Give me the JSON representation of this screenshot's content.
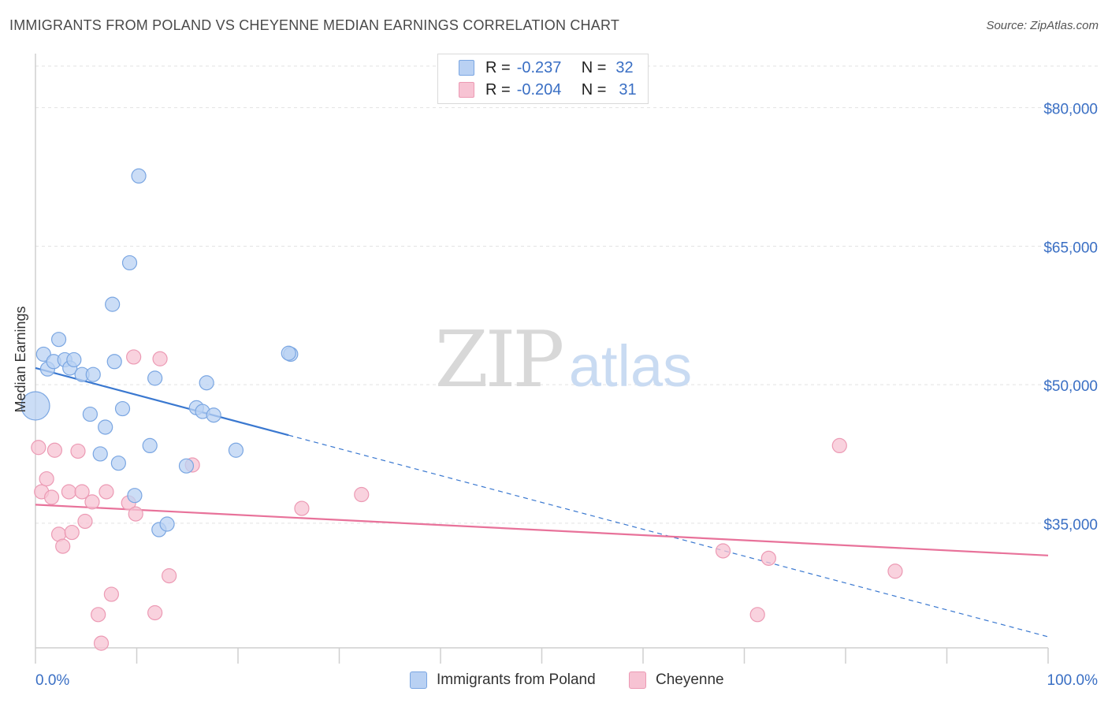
{
  "header": {
    "title": "IMMIGRANTS FROM POLAND VS CHEYENNE MEDIAN EARNINGS CORRELATION CHART",
    "source": "Source: ZipAtlas.com"
  },
  "watermark": {
    "zip": "ZIP",
    "atlas": "atlas"
  },
  "legend": {
    "rows": [
      {
        "r_label": "R =",
        "r_value": "-0.237",
        "n_label": "N =",
        "n_value": "32"
      },
      {
        "r_label": "R =",
        "r_value": "-0.204",
        "n_label": "N =",
        "n_value": "31"
      }
    ]
  },
  "chart_data": {
    "type": "scatter",
    "title": "IMMIGRANTS FROM POLAND VS CHEYENNE MEDIAN EARNINGS CORRELATION CHART",
    "xlabel": "",
    "ylabel": "Median Earnings",
    "xlim": [
      0,
      100
    ],
    "ylim": [
      21500,
      85000
    ],
    "x_tick_labels": [
      "0.0%",
      "100.0%"
    ],
    "y_ticks": [
      35000,
      50000,
      65000,
      80000
    ],
    "y_tick_labels": [
      "$35,000",
      "$50,000",
      "$65,000",
      "$80,000"
    ],
    "grid": true,
    "legend_position": "top-center",
    "colors": {
      "poland_fill": "#b9d1f3",
      "poland_stroke": "#7aa6e2",
      "poland_line": "#3a78d0",
      "cheyenne_fill": "#f7c3d3",
      "cheyenne_stroke": "#ec9ab4",
      "cheyenne_line": "#e8729a",
      "axis_label": "#3a6fc4"
    },
    "series": [
      {
        "name": "Immigrants from Poland",
        "r": -0.237,
        "n": 32,
        "trend": {
          "x0": 0,
          "y0": 51800,
          "x_solid_end": 25,
          "x1": 100,
          "y1": 22700
        },
        "points": [
          {
            "x": 0.0,
            "y": 47700,
            "big": true
          },
          {
            "x": 0.8,
            "y": 53300
          },
          {
            "x": 1.2,
            "y": 51700
          },
          {
            "x": 1.8,
            "y": 52500
          },
          {
            "x": 2.3,
            "y": 54900
          },
          {
            "x": 2.9,
            "y": 52700
          },
          {
            "x": 3.4,
            "y": 51800
          },
          {
            "x": 3.8,
            "y": 52700
          },
          {
            "x": 4.6,
            "y": 51100
          },
          {
            "x": 5.7,
            "y": 51100
          },
          {
            "x": 5.4,
            "y": 46800
          },
          {
            "x": 6.4,
            "y": 42500
          },
          {
            "x": 6.9,
            "y": 45400
          },
          {
            "x": 7.6,
            "y": 58700
          },
          {
            "x": 7.8,
            "y": 52500
          },
          {
            "x": 8.2,
            "y": 41500
          },
          {
            "x": 8.6,
            "y": 47400
          },
          {
            "x": 9.3,
            "y": 63200
          },
          {
            "x": 9.8,
            "y": 38000
          },
          {
            "x": 10.2,
            "y": 72600
          },
          {
            "x": 11.3,
            "y": 43400
          },
          {
            "x": 11.8,
            "y": 50700
          },
          {
            "x": 12.2,
            "y": 34300
          },
          {
            "x": 13.0,
            "y": 34900
          },
          {
            "x": 14.9,
            "y": 41200
          },
          {
            "x": 15.9,
            "y": 47500
          },
          {
            "x": 16.5,
            "y": 47100
          },
          {
            "x": 16.9,
            "y": 50200
          },
          {
            "x": 17.6,
            "y": 46700
          },
          {
            "x": 19.8,
            "y": 42900
          },
          {
            "x": 25.2,
            "y": 53300
          },
          {
            "x": 25.0,
            "y": 53400
          }
        ]
      },
      {
        "name": "Cheyenne",
        "r": -0.204,
        "n": 31,
        "trend": {
          "x0": 0,
          "y0": 37000,
          "x1": 100,
          "y1": 31500
        },
        "points": [
          {
            "x": 0.3,
            "y": 43200
          },
          {
            "x": 0.6,
            "y": 38400
          },
          {
            "x": 1.1,
            "y": 39800
          },
          {
            "x": 1.6,
            "y": 37800
          },
          {
            "x": 1.9,
            "y": 42900
          },
          {
            "x": 2.3,
            "y": 33800
          },
          {
            "x": 2.7,
            "y": 32500
          },
          {
            "x": 3.3,
            "y": 38400
          },
          {
            "x": 3.6,
            "y": 34000
          },
          {
            "x": 4.2,
            "y": 42800
          },
          {
            "x": 4.6,
            "y": 38400
          },
          {
            "x": 4.9,
            "y": 35200
          },
          {
            "x": 5.6,
            "y": 37300
          },
          {
            "x": 6.2,
            "y": 25100
          },
          {
            "x": 6.5,
            "y": 22000
          },
          {
            "x": 7.0,
            "y": 38400
          },
          {
            "x": 7.5,
            "y": 27300
          },
          {
            "x": 9.2,
            "y": 37200
          },
          {
            "x": 9.7,
            "y": 53000
          },
          {
            "x": 9.9,
            "y": 36000
          },
          {
            "x": 11.8,
            "y": 25300
          },
          {
            "x": 12.3,
            "y": 52800
          },
          {
            "x": 13.2,
            "y": 29300
          },
          {
            "x": 15.5,
            "y": 41300
          },
          {
            "x": 26.3,
            "y": 36600
          },
          {
            "x": 32.2,
            "y": 38100
          },
          {
            "x": 67.9,
            "y": 32000
          },
          {
            "x": 71.3,
            "y": 25100
          },
          {
            "x": 72.4,
            "y": 31200
          },
          {
            "x": 79.4,
            "y": 43400
          },
          {
            "x": 84.9,
            "y": 29800
          }
        ]
      }
    ]
  }
}
